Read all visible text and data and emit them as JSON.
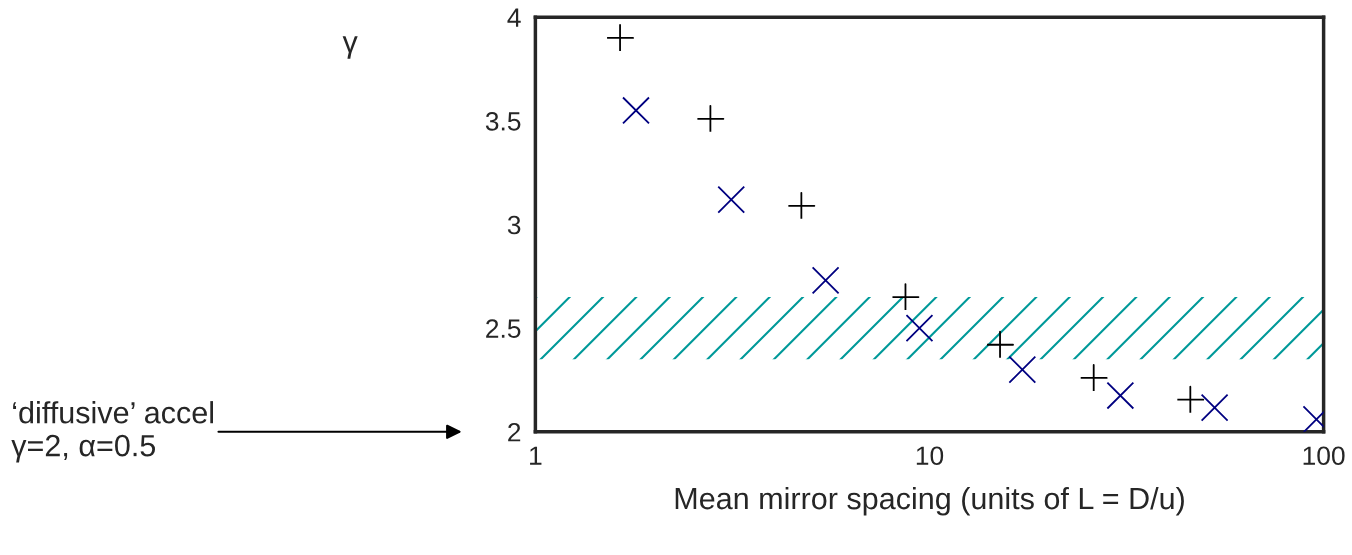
{
  "chart_data": {
    "type": "scatter",
    "xlabel": "Mean mirror spacing (units of L = D/u)",
    "ylabel": "γ",
    "log": "x",
    "xlim": [
      1,
      100
    ],
    "xticks": [
      1,
      10,
      100
    ],
    "ylim": [
      2,
      4
    ],
    "yticks": [
      2,
      2.5,
      3,
      3.5,
      4
    ],
    "grid": false,
    "legend": false,
    "series": [
      {
        "color": "#000000",
        "marker": "plus",
        "x": [
          1.64,
          2.78,
          4.73,
          8.69,
          15.1,
          26.1,
          45.9
        ],
        "values": [
          3.9,
          3.51,
          3.09,
          2.65,
          2.42,
          2.26,
          2.155
        ]
      },
      {
        "color": "#000080",
        "marker": "cross",
        "x": [
          1.8,
          3.14,
          5.45,
          9.43,
          17.2,
          30.5,
          52.9,
          95.9
        ],
        "values": [
          3.55,
          3.12,
          2.73,
          2.5,
          2.3,
          2.175,
          2.117,
          2.06
        ]
      }
    ],
    "bands": [
      {
        "axis": "y",
        "from": 2.35,
        "to": 2.65,
        "color": "#009999"
      }
    ],
    "annotations": [
      "‘diffusive’ accel\nγ=2, α=0.5"
    ]
  }
}
